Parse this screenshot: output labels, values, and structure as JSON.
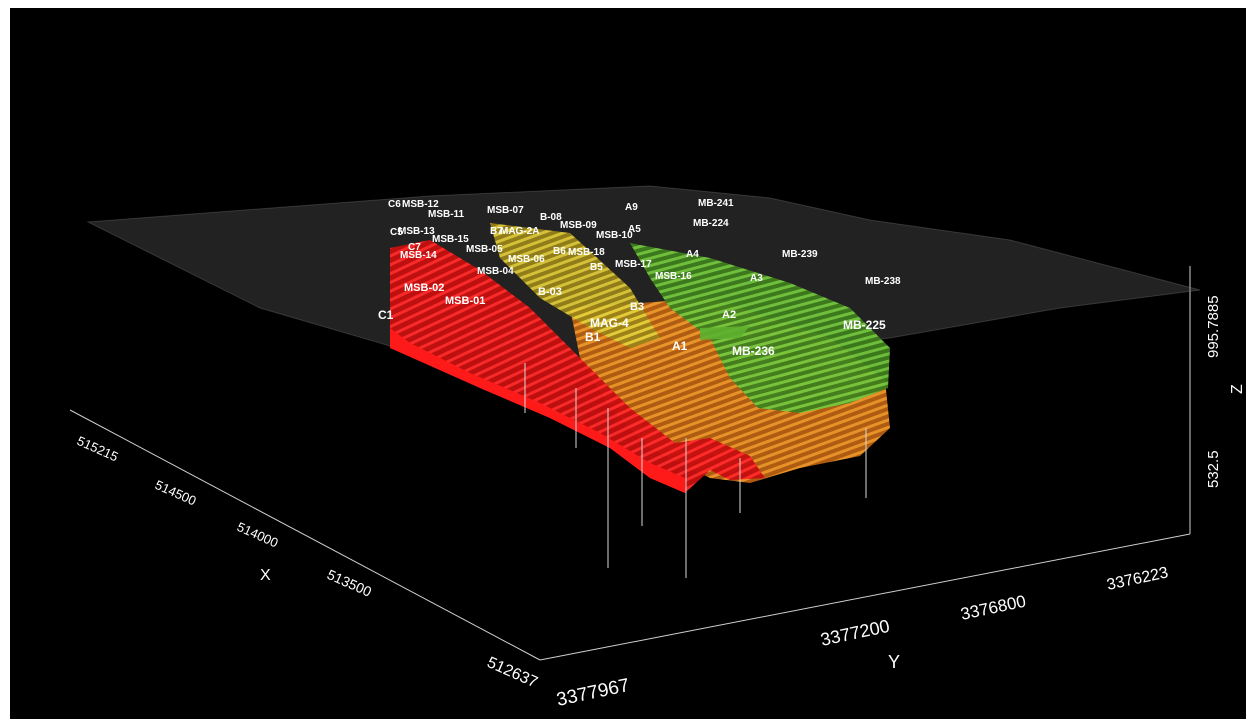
{
  "view": {
    "background": "#000000",
    "layer_colors": {
      "surface": "#5a5a5a",
      "red_layer": "#e01414",
      "orange_layer": "#e7851c",
      "yellow_layer": "#d8c02a",
      "green_layer": "#5fb030"
    }
  },
  "axes": {
    "x": {
      "name": "X",
      "ticks": [
        "515215",
        "514500",
        "514000",
        "513500",
        "512637"
      ]
    },
    "y": {
      "name": "Y",
      "ticks": [
        "3377967",
        "3377200",
        "3376800",
        "3376223"
      ]
    },
    "z": {
      "name": "Z",
      "ticks": [
        "995.7885",
        "532.5"
      ]
    }
  },
  "borehole_labels": [
    "C6",
    "MSB-12",
    "MSB-11",
    "MSB-07",
    "B-08",
    "MSB-09",
    "A9",
    "MB-241",
    "C5",
    "MSB-13",
    "MSB-15",
    "B7",
    "MAG-2A",
    "MSB-10",
    "A5",
    "MB-224",
    "C7",
    "MSB-14",
    "MSB-05",
    "MSB-06",
    "B6",
    "MSB-18",
    "A4",
    "MB-239",
    "MSB-04",
    "B5",
    "MSB-17",
    "MSB-16",
    "A3",
    "MB-238",
    "MSB-02",
    "B-03",
    "MSB-01",
    "B3",
    "A2",
    "C1",
    "MAG-4",
    "MB-225",
    "B1",
    "A1",
    "MB-236"
  ]
}
